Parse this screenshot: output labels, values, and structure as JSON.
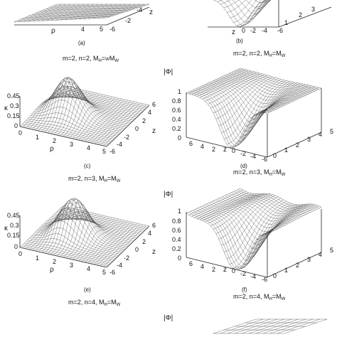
{
  "figure": {
    "captions": [
      "m=2, n=2, M",
      "m=2, n=2, M",
      "m=2, n=3, M",
      "m=2, n=3, M",
      "m=2, n=4, M",
      "m=2, n=4, M"
    ],
    "caption_sub": [
      "H",
      "W"
    ],
    "caption_eq": "=",
    "phi_label": "|Φ|",
    "panel_letters": [
      "(a)",
      "(b)",
      "(c)",
      "(d)",
      "(e)",
      "(f)"
    ],
    "kappa_label": "κ",
    "rho_label": "ρ",
    "z_label": "z",
    "left_z_ticks": [
      "-6",
      "-4",
      "-2",
      "0",
      "2",
      "4",
      "6"
    ],
    "left_rho_ticks": [
      "0",
      "1",
      "2",
      "3",
      "4",
      "5"
    ],
    "left_y_ticks": [
      "0.45",
      "0.3",
      "0.15",
      "0"
    ],
    "right_y_ticks": [
      "1",
      "0.8",
      "0.6",
      "0.4",
      "0.2",
      "0"
    ],
    "right_z_ticks": [
      "6",
      "4",
      "2",
      "0",
      "-2",
      "-4",
      "-6"
    ],
    "right_side_tick": "5"
  }
}
